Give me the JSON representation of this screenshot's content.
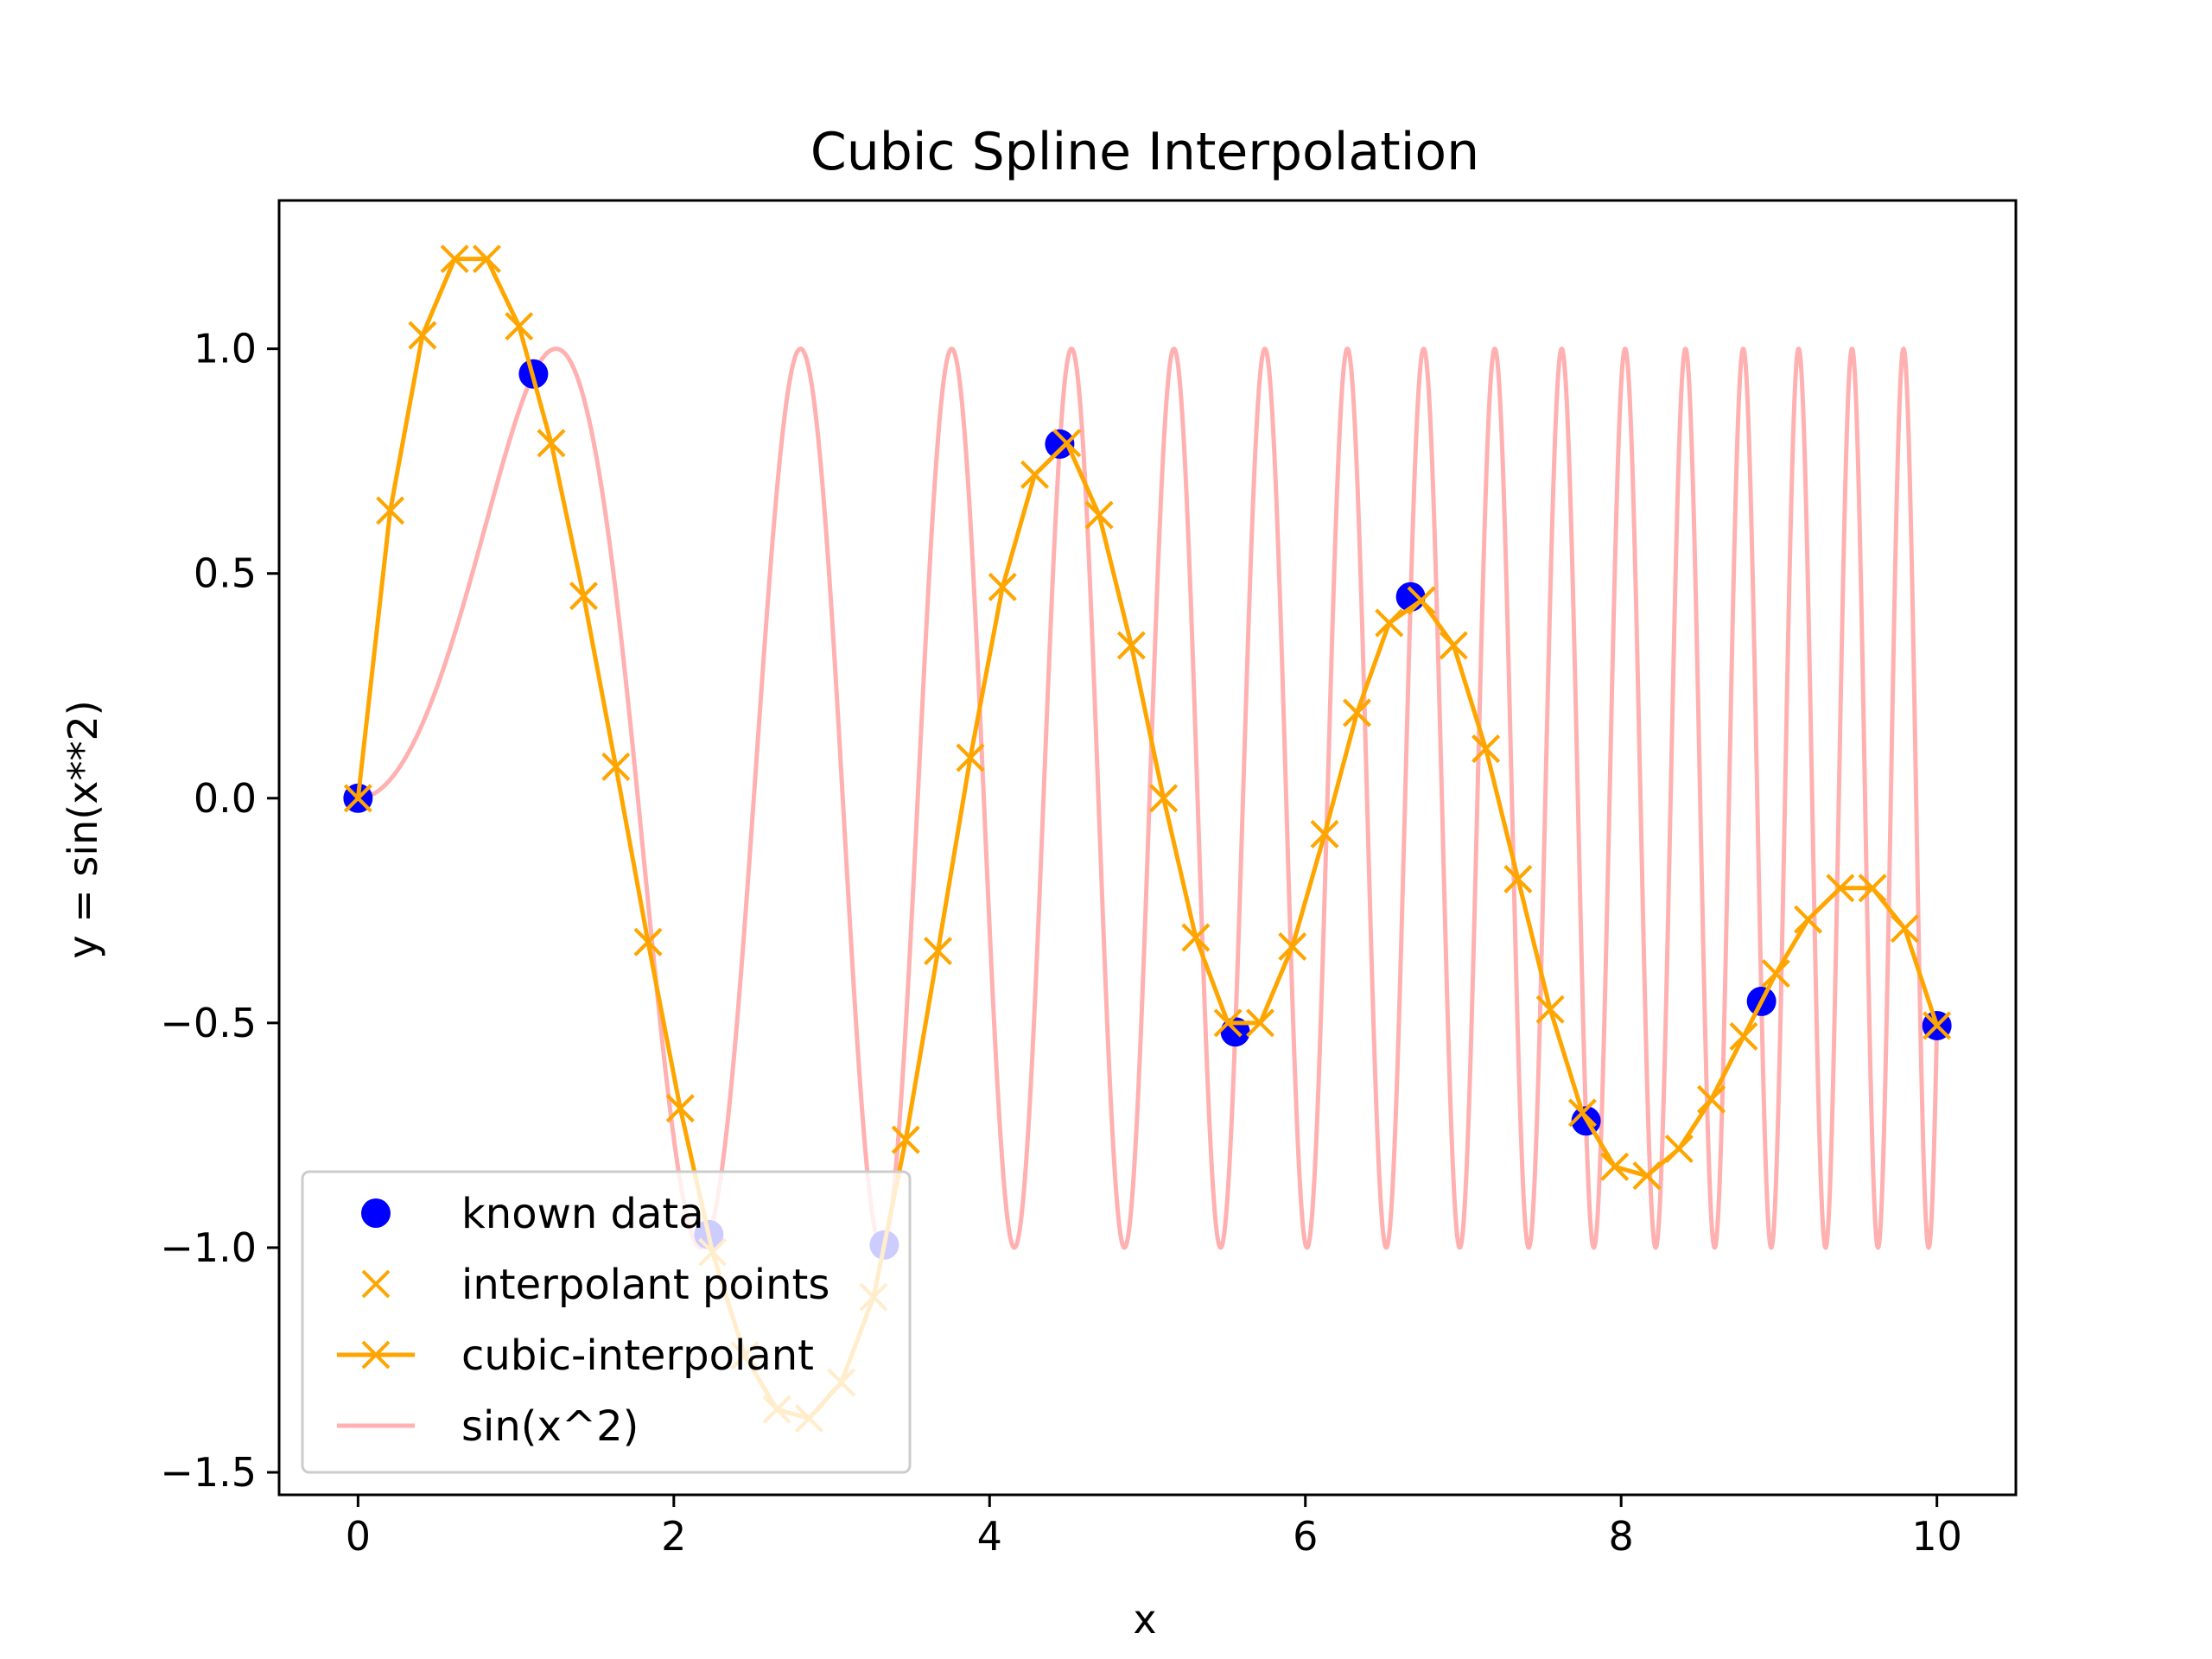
{
  "chart_data": {
    "type": "line",
    "title": "Cubic Spline Interpolation",
    "xlabel": "x",
    "ylabel": "y = sin(x**2)",
    "xlim": [
      -0.5,
      10.5
    ],
    "ylim": [
      -1.55,
      1.33
    ],
    "xticks": [
      0,
      2,
      4,
      6,
      8,
      10
    ],
    "xtick_labels": [
      "0",
      "2",
      "4",
      "6",
      "8",
      "10"
    ],
    "yticks": [
      -1.5,
      -1.0,
      -0.5,
      0.0,
      0.5,
      1.0
    ],
    "ytick_labels": [
      "−1.5",
      "−1.0",
      "−0.5",
      "0.0",
      "0.5",
      "1.0"
    ],
    "grid": false,
    "legend_position": "lower-left",
    "series": [
      {
        "name": "known data",
        "kind": "markers",
        "marker": "circle",
        "color": "#0000ff",
        "x": [
          0,
          1.111,
          2.222,
          3.333,
          4.444,
          5.556,
          6.667,
          7.778,
          8.889,
          10
        ],
        "y": [
          0.0,
          0.944,
          -0.971,
          -0.994,
          0.788,
          -0.52,
          0.448,
          -0.718,
          -0.452,
          -0.506
        ]
      },
      {
        "name": "interpolant points",
        "kind": "markers",
        "marker": "x",
        "color": "#ffa500",
        "x": [
          0,
          0.204,
          0.408,
          0.612,
          0.816,
          1.02,
          1.224,
          1.429,
          1.633,
          1.837,
          2.041,
          2.245,
          2.449,
          2.653,
          2.857,
          3.061,
          3.265,
          3.469,
          3.673,
          3.878,
          4.082,
          4.286,
          4.49,
          4.694,
          4.898,
          5.102,
          5.306,
          5.51,
          5.714,
          5.918,
          6.122,
          6.327,
          6.531,
          6.735,
          6.939,
          7.143,
          7.347,
          7.551,
          7.755,
          7.959,
          8.163,
          8.367,
          8.571,
          8.776,
          8.98,
          9.184,
          9.388,
          9.592,
          9.796,
          10
        ],
        "y": [
          0.0,
          0.64,
          1.03,
          1.2,
          1.2,
          1.05,
          0.79,
          0.45,
          0.07,
          -0.32,
          -0.69,
          -1.01,
          -1.24,
          -1.36,
          -1.38,
          -1.3,
          -1.11,
          -0.76,
          -0.34,
          0.09,
          0.47,
          0.72,
          0.79,
          0.63,
          0.34,
          0.0,
          -0.31,
          -0.5,
          -0.5,
          -0.33,
          -0.08,
          0.19,
          0.39,
          0.44,
          0.34,
          0.11,
          -0.18,
          -0.47,
          -0.7,
          -0.82,
          -0.84,
          -0.78,
          -0.67,
          -0.53,
          -0.39,
          -0.27,
          -0.2,
          -0.2,
          -0.29,
          -0.506
        ]
      },
      {
        "name": "cubic-interpolant",
        "kind": "line+markers",
        "marker": "x",
        "color": "#ffa500",
        "x": [
          0,
          0.204,
          0.408,
          0.612,
          0.816,
          1.02,
          1.224,
          1.429,
          1.633,
          1.837,
          2.041,
          2.245,
          2.449,
          2.653,
          2.857,
          3.061,
          3.265,
          3.469,
          3.673,
          3.878,
          4.082,
          4.286,
          4.49,
          4.694,
          4.898,
          5.102,
          5.306,
          5.51,
          5.714,
          5.918,
          6.122,
          6.327,
          6.531,
          6.735,
          6.939,
          7.143,
          7.347,
          7.551,
          7.755,
          7.959,
          8.163,
          8.367,
          8.571,
          8.776,
          8.98,
          9.184,
          9.388,
          9.592,
          9.796,
          10
        ],
        "y": [
          0.0,
          0.64,
          1.03,
          1.2,
          1.2,
          1.05,
          0.79,
          0.45,
          0.07,
          -0.32,
          -0.69,
          -1.01,
          -1.24,
          -1.36,
          -1.38,
          -1.3,
          -1.11,
          -0.76,
          -0.34,
          0.09,
          0.47,
          0.72,
          0.79,
          0.63,
          0.34,
          0.0,
          -0.31,
          -0.5,
          -0.5,
          -0.33,
          -0.08,
          0.19,
          0.39,
          0.44,
          0.34,
          0.11,
          -0.18,
          -0.47,
          -0.7,
          -0.82,
          -0.84,
          -0.78,
          -0.67,
          -0.53,
          -0.39,
          -0.27,
          -0.2,
          -0.2,
          -0.29,
          -0.506
        ]
      },
      {
        "name": "sin(x^2)",
        "kind": "line",
        "color": "#ffb0b0",
        "function": "sin(x^2)",
        "x_range": [
          0,
          10
        ]
      }
    ]
  }
}
